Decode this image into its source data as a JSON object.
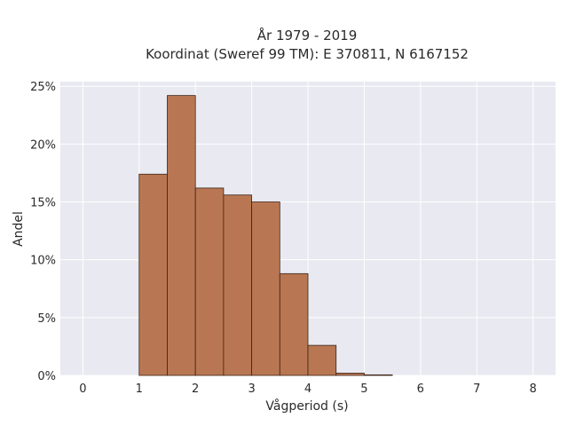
{
  "chart_data": {
    "type": "bar",
    "title_line1": "År 1979 - 2019",
    "title_line2": "Koordinat (Sweref 99 TM): E 370811, N 6167152",
    "xlabel": "Vågperiod (s)",
    "ylabel": "Andel",
    "x_ticks": [
      "0",
      "1",
      "2",
      "3",
      "4",
      "5",
      "6",
      "7",
      "8"
    ],
    "y_ticks": [
      "0%",
      "5%",
      "10%",
      "15%",
      "20%",
      "25%"
    ],
    "xlim": [
      -0.4,
      8.4
    ],
    "ylim": [
      0,
      25.4
    ],
    "grid": true,
    "bin_width": 0.5,
    "series": [
      {
        "bins": [
          {
            "x0": 1.0,
            "x1": 1.5,
            "value": 17.4
          },
          {
            "x0": 1.5,
            "x1": 2.0,
            "value": 24.2
          },
          {
            "x0": 2.0,
            "x1": 2.5,
            "value": 16.2
          },
          {
            "x0": 2.5,
            "x1": 3.0,
            "value": 15.6
          },
          {
            "x0": 3.0,
            "x1": 3.5,
            "value": 15.0
          },
          {
            "x0": 3.5,
            "x1": 4.0,
            "value": 8.8
          },
          {
            "x0": 4.0,
            "x1": 4.5,
            "value": 2.6
          },
          {
            "x0": 4.5,
            "x1": 5.0,
            "value": 0.2
          },
          {
            "x0": 5.0,
            "x1": 5.5,
            "value": 0.05
          }
        ]
      }
    ],
    "colors": {
      "bar_fill": "#b87752",
      "bar_edge": "#3d2418",
      "plot_bg": "#e9e9f1"
    }
  }
}
